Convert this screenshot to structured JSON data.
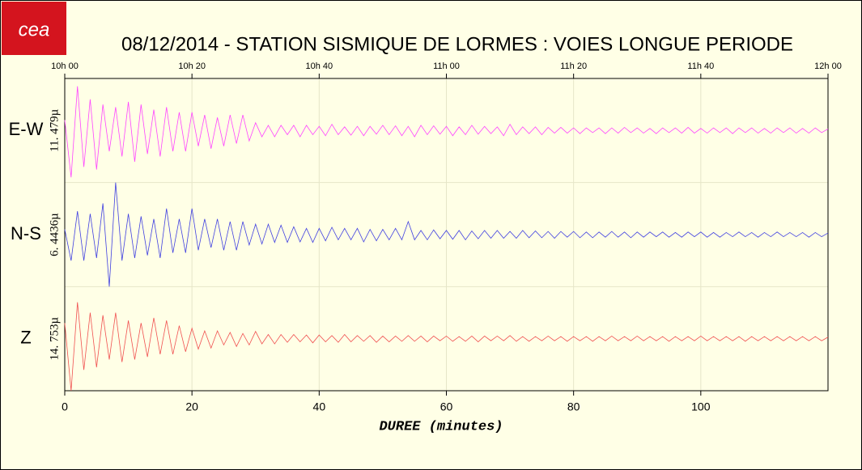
{
  "logo": "cea",
  "chart_data": {
    "type": "seismogram",
    "title": "08/12/2014  -  STATION SISMIQUE DE LORMES : VOIES LONGUE PERIODE",
    "x_label": "DUREE (minutes)",
    "xlim": [
      0,
      120
    ],
    "xticks": [
      0,
      20,
      40,
      60,
      80,
      100
    ],
    "xticks_top": [
      {
        "value": 0,
        "label": "10h 00"
      },
      {
        "value": 20,
        "label": "10h 20"
      },
      {
        "value": 40,
        "label": "10h 40"
      },
      {
        "value": 60,
        "label": "11h 00"
      },
      {
        "value": 80,
        "label": "11h 20"
      },
      {
        "value": 100,
        "label": "11h 40"
      },
      {
        "value": 120,
        "label": "12h 00"
      }
    ],
    "ylim": [
      -1,
      1
    ],
    "grid": true,
    "x": [
      0,
      1,
      2,
      3,
      4,
      5,
      6,
      7,
      8,
      9,
      10,
      11,
      12,
      13,
      14,
      15,
      16,
      17,
      18,
      19,
      20,
      21,
      22,
      23,
      24,
      25,
      26,
      27,
      28,
      29,
      30,
      31,
      32,
      33,
      34,
      35,
      36,
      37,
      38,
      39,
      40,
      41,
      42,
      43,
      44,
      45,
      46,
      47,
      48,
      49,
      50,
      51,
      52,
      53,
      54,
      55,
      56,
      57,
      58,
      59,
      60,
      61,
      62,
      63,
      64,
      65,
      66,
      67,
      68,
      69,
      70,
      71,
      72,
      73,
      74,
      75,
      76,
      77,
      78,
      79,
      80,
      81,
      82,
      83,
      84,
      85,
      86,
      87,
      88,
      89,
      90,
      91,
      92,
      93,
      94,
      95,
      96,
      97,
      98,
      99,
      100,
      101,
      102,
      103,
      104,
      105,
      106,
      107,
      108,
      109,
      110,
      111,
      112,
      113,
      114,
      115,
      116,
      117,
      118,
      119,
      120
    ],
    "series": [
      {
        "name": "E-W",
        "scale": "11. 479µ",
        "color": "#ff44ff",
        "values": [
          0.2,
          -0.9,
          0.85,
          -0.7,
          0.6,
          -0.75,
          0.5,
          -0.4,
          0.45,
          -0.5,
          0.55,
          -0.6,
          0.5,
          -0.45,
          0.4,
          -0.5,
          0.45,
          -0.4,
          0.35,
          -0.4,
          0.35,
          -0.3,
          0.3,
          -0.35,
          0.25,
          -0.3,
          0.3,
          -0.25,
          0.3,
          -0.2,
          0.15,
          -0.12,
          0.1,
          -0.12,
          0.1,
          -0.08,
          0.1,
          -0.12,
          0.1,
          -0.08,
          0.08,
          -0.1,
          0.12,
          -0.08,
          0.07,
          -0.09,
          0.08,
          -0.1,
          0.08,
          -0.07,
          0.1,
          -0.08,
          0.09,
          -0.1,
          0.08,
          -0.12,
          0.1,
          -0.08,
          0.09,
          -0.07,
          0.08,
          -0.1,
          0.07,
          -0.08,
          0.1,
          -0.07,
          0.08,
          -0.06,
          0.07,
          -0.1,
          0.12,
          -0.08,
          0.07,
          -0.06,
          0.07,
          -0.08,
          0.06,
          -0.05,
          0.06,
          -0.05,
          0.05,
          -0.06,
          0.05,
          -0.04,
          0.05,
          -0.06,
          0.05,
          -0.05,
          0.06,
          -0.04,
          0.05,
          -0.05,
          0.04,
          -0.06,
          0.05,
          -0.04,
          0.05,
          -0.05,
          0.06,
          -0.05,
          0.04,
          -0.05,
          0.05,
          -0.04,
          0.05,
          -0.06,
          0.05,
          -0.04,
          0.05,
          -0.05,
          0.04,
          -0.05,
          0.05,
          -0.04,
          0.05,
          -0.05,
          0.04,
          -0.05,
          0.05,
          -0.04,
          0.03
        ]
      },
      {
        "name": "N-S",
        "scale": "6. 4436µ",
        "color": "#4040e0",
        "values": [
          0.1,
          -0.5,
          0.45,
          -0.5,
          0.4,
          -0.45,
          0.6,
          -1.0,
          1.0,
          -0.5,
          0.4,
          -0.45,
          0.35,
          -0.4,
          0.3,
          -0.45,
          0.5,
          -0.35,
          0.3,
          -0.35,
          0.5,
          -0.3,
          0.3,
          -0.25,
          0.3,
          -0.3,
          0.25,
          -0.3,
          0.25,
          -0.2,
          0.2,
          -0.18,
          0.2,
          -0.15,
          0.18,
          -0.15,
          0.15,
          -0.14,
          0.12,
          -0.15,
          0.12,
          -0.12,
          0.14,
          -0.1,
          0.12,
          -0.1,
          0.12,
          -0.14,
          0.1,
          -0.12,
          0.1,
          -0.1,
          0.12,
          -0.1,
          0.25,
          -0.1,
          0.08,
          -0.1,
          0.09,
          -0.08,
          0.08,
          -0.09,
          0.08,
          -0.1,
          0.07,
          -0.08,
          0.08,
          -0.07,
          0.08,
          -0.07,
          0.06,
          -0.07,
          0.08,
          -0.06,
          0.07,
          -0.06,
          0.06,
          -0.07,
          0.06,
          -0.05,
          0.06,
          -0.06,
          0.05,
          -0.06,
          0.05,
          -0.05,
          0.06,
          -0.05,
          0.05,
          -0.06,
          0.05,
          -0.05,
          0.05,
          -0.04,
          0.05,
          -0.05,
          0.04,
          -0.05,
          0.05,
          -0.04,
          0.05,
          -0.05,
          0.04,
          -0.05,
          0.04,
          -0.04,
          0.05,
          -0.04,
          0.04,
          -0.05,
          0.04,
          -0.04,
          0.05,
          -0.04,
          0.04,
          -0.04,
          0.04,
          -0.05,
          0.04,
          -0.04,
          0.03
        ]
      },
      {
        "name": "Z",
        "scale": "14. 753µ",
        "color": "#f05050",
        "values": [
          0.3,
          -1.0,
          0.7,
          -0.6,
          0.5,
          -0.55,
          0.45,
          -0.4,
          0.5,
          -0.45,
          0.35,
          -0.4,
          0.3,
          -0.35,
          0.4,
          -0.3,
          0.35,
          -0.3,
          0.25,
          -0.25,
          0.2,
          -0.2,
          0.15,
          -0.18,
          0.15,
          -0.12,
          0.12,
          -0.15,
          0.1,
          -0.12,
          0.14,
          -0.1,
          0.08,
          -0.1,
          0.08,
          -0.07,
          0.08,
          -0.06,
          0.07,
          -0.08,
          0.07,
          -0.06,
          0.06,
          -0.07,
          0.08,
          -0.06,
          0.06,
          -0.05,
          0.06,
          -0.07,
          0.05,
          -0.06,
          0.05,
          -0.05,
          0.06,
          -0.05,
          0.05,
          -0.06,
          0.05,
          -0.04,
          0.05,
          -0.05,
          0.04,
          -0.05,
          0.05,
          -0.06,
          0.05,
          -0.04,
          0.05,
          -0.04,
          0.06,
          -0.05,
          0.04,
          -0.05,
          0.04,
          -0.04,
          0.05,
          -0.04,
          0.04,
          -0.05,
          0.04,
          -0.04,
          0.04,
          -0.05,
          0.04,
          -0.04,
          0.05,
          -0.04,
          0.04,
          -0.04,
          0.05,
          -0.04,
          0.04,
          -0.04,
          0.04,
          -0.05,
          0.04,
          -0.04,
          0.04,
          -0.04,
          0.05,
          -0.04,
          0.04,
          -0.04,
          0.04,
          -0.04,
          0.04,
          -0.05,
          0.04,
          -0.04,
          0.04,
          -0.04,
          0.04,
          -0.04,
          0.04,
          -0.04,
          0.04,
          -0.04,
          0.04,
          -0.04,
          0.03
        ]
      }
    ]
  }
}
